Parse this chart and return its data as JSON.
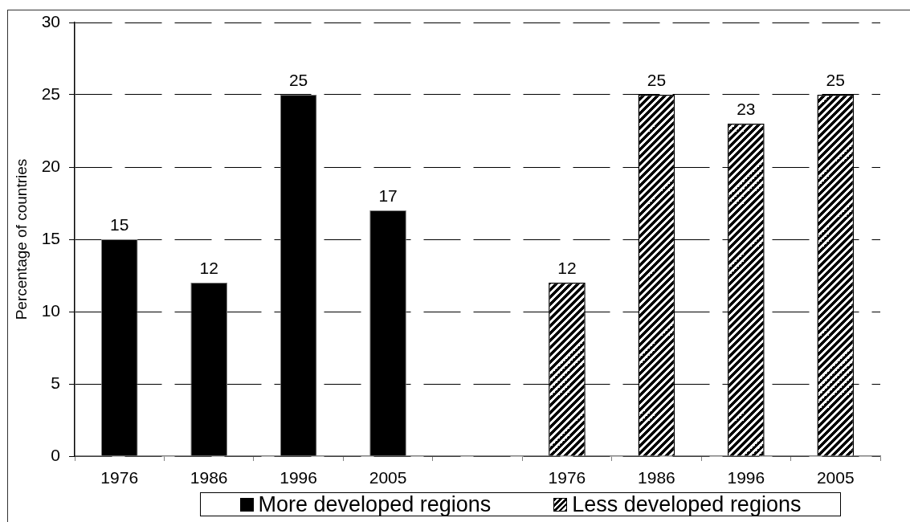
{
  "chart_data": {
    "type": "bar",
    "ylabel": "Percentage of countries",
    "categories": [
      "1976",
      "1986",
      "1996",
      "2005",
      null,
      "1976",
      "1986",
      "1996",
      "2005"
    ],
    "series": [
      {
        "name": "More developed regions",
        "color": "#000000",
        "values": [
          15,
          12,
          25,
          17,
          null,
          null,
          null,
          null,
          null
        ]
      },
      {
        "name": "Less developed regions",
        "color": "#000000",
        "values": [
          null,
          null,
          null,
          null,
          null,
          12,
          25,
          23,
          25
        ]
      }
    ],
    "ylim": [
      0,
      30
    ],
    "yticks": [
      0,
      5,
      10,
      15,
      20,
      25,
      30
    ],
    "grid": "y",
    "legend": "bottom",
    "data_labels": true
  }
}
